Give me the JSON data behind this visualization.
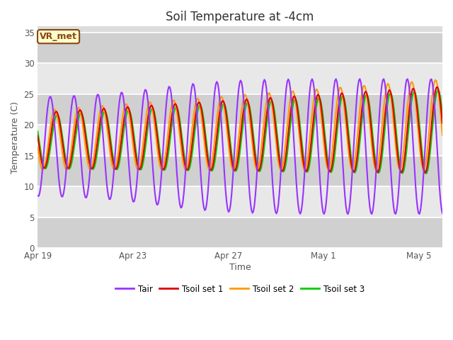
{
  "title": "Soil Temperature at -4cm",
  "xlabel": "Time",
  "ylabel": "Temperature (C)",
  "ylim": [
    0,
    36
  ],
  "yticks": [
    0,
    5,
    10,
    15,
    20,
    25,
    30,
    35
  ],
  "fig_bg_color": "#ffffff",
  "plot_bg_color": "#dcdcdc",
  "band_color_light": "#e8e8e8",
  "band_color_dark": "#d0d0d0",
  "grid_color": "#ffffff",
  "annotation_text": "VR_met",
  "annotation_bg": "#ffffcc",
  "annotation_border": "#8B4513",
  "line_colors": {
    "Tair": "#9933ff",
    "Tsoil1": "#dd0000",
    "Tsoil2": "#ff9900",
    "Tsoil3": "#00cc00"
  },
  "legend_labels": [
    "Tair",
    "Tsoil set 1",
    "Tsoil set 2",
    "Tsoil set 3"
  ],
  "n_days": 17,
  "xtick_labels": [
    "Apr 19",
    "Apr 23",
    "Apr 27",
    "May 1",
    "May 5"
  ],
  "xtick_positions": [
    0,
    4,
    8,
    12,
    16
  ]
}
